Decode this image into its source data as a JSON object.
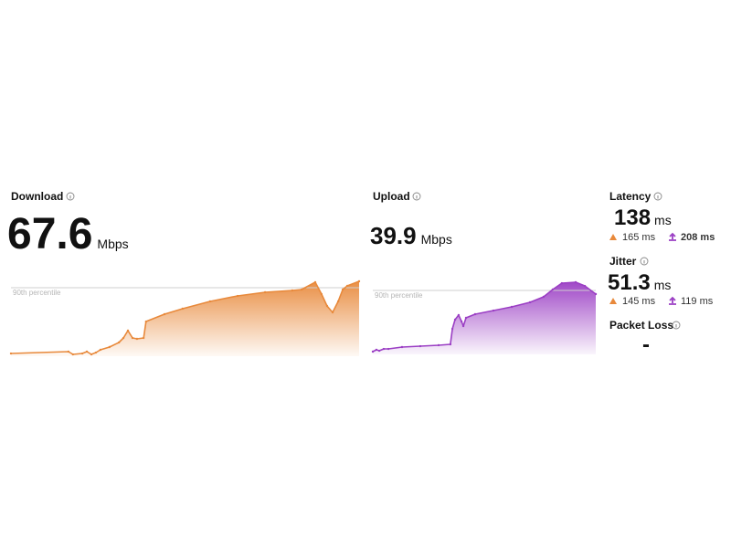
{
  "download": {
    "label": "Download",
    "value": 67.6,
    "unit": "Mbps",
    "chart": {
      "type": "area",
      "color": "#e8893b",
      "x": [
        0,
        1.65,
        1.78,
        2.05,
        2.18,
        2.31,
        2.44,
        2.57,
        2.83,
        3.1,
        3.23,
        3.36,
        3.49,
        3.62,
        3.81,
        3.88,
        4.41,
        4.93,
        5.72,
        6.51,
        7.3,
        8.08,
        8.35,
        8.74,
        8.92,
        9.08,
        9.24,
        9.4,
        9.53,
        9.66,
        10
      ],
      "values": [
        3.3,
        5.6,
        2.2,
        3.3,
        5.6,
        2.2,
        4.4,
        7.8,
        11.1,
        16.7,
        22.2,
        31.1,
        22.2,
        21.1,
        22.2,
        42.2,
        51.1,
        57.8,
        66.7,
        73.3,
        77.8,
        80,
        81.1,
        90,
        75.6,
        61.1,
        53.3,
        66.7,
        81.1,
        85.6,
        91.1
      ],
      "xlim": [
        0,
        10
      ],
      "ylim": [
        0,
        100
      ],
      "percentile_label": "90th percentile",
      "percentile_value": 83.3
    }
  },
  "upload": {
    "label": "Upload",
    "value": 39.9,
    "unit": "Mbps",
    "chart": {
      "type": "area",
      "color": "#9b3fc4",
      "x": [
        0,
        0.16,
        0.29,
        0.49,
        0.7,
        1.31,
        2.13,
        2.95,
        3.48,
        3.57,
        3.69,
        3.85,
        3.98,
        4.06,
        4.18,
        4.59,
        5.41,
        6.23,
        7.05,
        7.66,
        8.07,
        8.48,
        9.1,
        9.51,
        10
      ],
      "values": [
        3.4,
        5.7,
        4.5,
        6.8,
        6.8,
        9.1,
        10.2,
        11.4,
        12.5,
        31.8,
        43.2,
        48.9,
        40.9,
        35.2,
        45.5,
        50,
        54.5,
        59.1,
        64.8,
        71.6,
        80.7,
        88.6,
        89.8,
        85.2,
        75
      ],
      "xlim": [
        0,
        10
      ],
      "ylim": [
        0,
        100
      ],
      "percentile_label": "90th percentile",
      "percentile_value": 79.5
    }
  },
  "latency": {
    "label": "Latency",
    "value": 138,
    "unit": "ms",
    "download": "165 ms",
    "upload": "208 ms"
  },
  "jitter": {
    "label": "Jitter",
    "value": 51.3,
    "unit": "ms",
    "download": "145 ms",
    "upload": "119 ms"
  },
  "packet_loss": {
    "label": "Packet Loss",
    "value": "-"
  }
}
